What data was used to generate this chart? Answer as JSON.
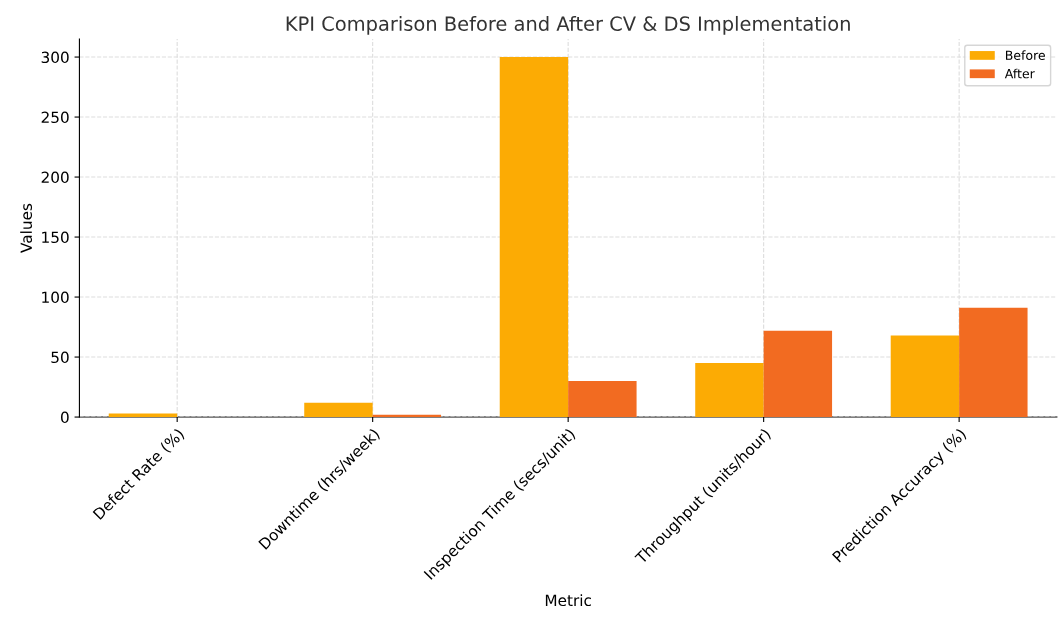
{
  "chart_data": {
    "type": "bar",
    "title": "KPI Comparison Before and After CV & DS Implementation",
    "xlabel": "Metric",
    "ylabel": "Values",
    "categories": [
      "Defect Rate (%)",
      "Downtime (hrs/week)",
      "Inspection Time (secs/unit)",
      "Throughput (units/hour)",
      "Prediction Accuracy (%)"
    ],
    "series": [
      {
        "name": "Before",
        "color": "#fcab04",
        "values": [
          3,
          12,
          300,
          45,
          68
        ]
      },
      {
        "name": "After",
        "color": "#f26b21",
        "values": [
          null,
          2,
          30,
          72,
          91
        ]
      }
    ],
    "ylim": [
      0,
      315
    ],
    "yticks": [
      0,
      50,
      100,
      150,
      200,
      250,
      300
    ],
    "grid": true,
    "legend": "top right"
  }
}
